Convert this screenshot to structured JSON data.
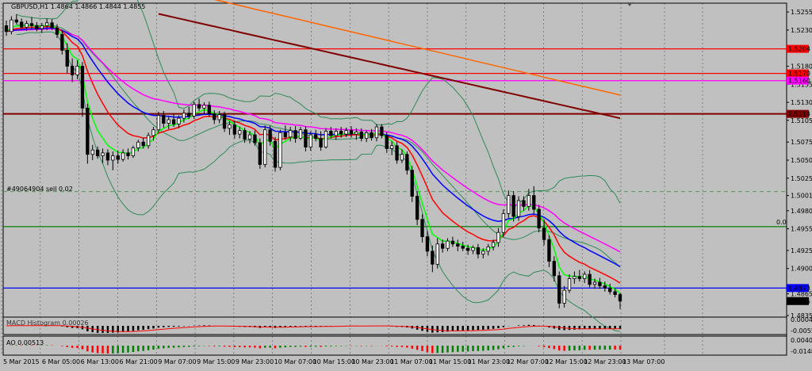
{
  "header": {
    "title": "GBPUSD,H1  1.4864 1.4866 1.4844 1.4855"
  },
  "order_label": "#49064904 sell 0.02",
  "grid_label": "0.0",
  "macd_label": "MACD Histogram 0.00026",
  "ao_label": "AO 0.00513",
  "colors": {
    "background": "#c0c0c0",
    "bull_candle": "#ffffff",
    "bear_candle": "#000000",
    "ma_red": "#ff0000",
    "ma_blue": "#0000ff",
    "ma_green": "#00ff00",
    "ma_magenta": "#ff00ff",
    "ma_brown": "#800000",
    "ma_orange": "#ff6600",
    "bands": "#2e8b57",
    "level_red": "#ff0000",
    "level_magenta": "#ff00ff",
    "level_brown": "#800000",
    "level_blue": "#0000ff",
    "level_green": "#008000",
    "ao_up": "#008000",
    "ao_down": "#ff0000"
  },
  "chart_data": {
    "type": "candlestick",
    "symbol": "GBPUSD",
    "timeframe": "H1",
    "x_labels": [
      "5 Mar 2015",
      "6 Mar 05:00",
      "6 Mar 13:00",
      "6 Mar 21:00",
      "9 Mar 07:00",
      "9 Mar 15:00",
      "9 Mar 23:00",
      "10 Mar 07:00",
      "10 Mar 15:00",
      "10 Mar 23:00",
      "11 Mar 07:00",
      "11 Mar 15:00",
      "11 Mar 23:00",
      "12 Mar 07:00",
      "12 Mar 15:00",
      "12 Mar 23:00",
      "13 Mar 07:00"
    ],
    "y_ticks": [
      "1.5255",
      "1.5230",
      "1.5180",
      "1.5155",
      "1.5130",
      "1.5105",
      "1.5075",
      "1.5050",
      "1.5025",
      "1.5001",
      "1.4980",
      "1.4955",
      "1.4925",
      "1.4900",
      "1.4865",
      "1.4835"
    ],
    "ylim": [
      1.4835,
      1.5265
    ],
    "price_labels": [
      {
        "value": 1.5204,
        "label": "1.5204",
        "color": "#ff0000"
      },
      {
        "value": 1.517,
        "label": "1.5170",
        "color": "#ff0000"
      },
      {
        "value": 1.516,
        "label": "1.5160",
        "color": "#ff00ff"
      },
      {
        "value": 1.5114,
        "label": "1.5114",
        "color": "#800000"
      },
      {
        "value": 1.4873,
        "label": "1.4873",
        "color": "#0000ff"
      },
      {
        "value": 1.4855,
        "label": "1.4855",
        "color": "#000000"
      }
    ],
    "levels": [
      {
        "value": 1.5204,
        "color": "#ff0000"
      },
      {
        "value": 1.517,
        "color": "#ff0000"
      },
      {
        "value": 1.516,
        "color": "#ff00ff"
      },
      {
        "value": 1.5114,
        "color": "#800000"
      },
      {
        "value": 1.4873,
        "color": "#0000ff"
      },
      {
        "value": 1.4958,
        "color": "#008000"
      }
    ],
    "order_level": 1.50064,
    "candles": [
      [
        1.5236,
        1.5243,
        1.5222,
        1.5228
      ],
      [
        1.5228,
        1.5249,
        1.5224,
        1.5244
      ],
      [
        1.5244,
        1.5252,
        1.5238,
        1.5241
      ],
      [
        1.5241,
        1.5246,
        1.5232,
        1.5234
      ],
      [
        1.5234,
        1.5243,
        1.5229,
        1.5239
      ],
      [
        1.5239,
        1.5248,
        1.5232,
        1.5236
      ],
      [
        1.5236,
        1.5241,
        1.5228,
        1.5232
      ],
      [
        1.5232,
        1.524,
        1.5226,
        1.5236
      ],
      [
        1.5236,
        1.5246,
        1.523,
        1.524
      ],
      [
        1.524,
        1.5245,
        1.523,
        1.5233
      ],
      [
        1.5233,
        1.5238,
        1.5219,
        1.5224
      ],
      [
        1.5224,
        1.5229,
        1.5196,
        1.5202
      ],
      [
        1.5202,
        1.5212,
        1.517,
        1.518
      ],
      [
        1.518,
        1.5191,
        1.5158,
        1.5168
      ],
      [
        1.5168,
        1.5188,
        1.5162,
        1.518
      ],
      [
        1.518,
        1.5186,
        1.511,
        1.5122
      ],
      [
        1.5122,
        1.5128,
        1.5045,
        1.5058
      ],
      [
        1.5058,
        1.5071,
        1.505,
        1.5064
      ],
      [
        1.5064,
        1.5069,
        1.5052,
        1.5056
      ],
      [
        1.5056,
        1.5066,
        1.5046,
        1.506
      ],
      [
        1.506,
        1.5065,
        1.5043,
        1.505
      ],
      [
        1.505,
        1.5062,
        1.5036,
        1.5056
      ],
      [
        1.5056,
        1.5063,
        1.5045,
        1.5051
      ],
      [
        1.5051,
        1.5065,
        1.5048,
        1.506
      ],
      [
        1.506,
        1.5066,
        1.5051,
        1.5056
      ],
      [
        1.5056,
        1.507,
        1.5053,
        1.5067
      ],
      [
        1.5067,
        1.5078,
        1.5062,
        1.5075
      ],
      [
        1.5075,
        1.5081,
        1.5066,
        1.507
      ],
      [
        1.507,
        1.5088,
        1.5066,
        1.5084
      ],
      [
        1.5084,
        1.5096,
        1.5077,
        1.5092
      ],
      [
        1.5092,
        1.5117,
        1.5088,
        1.5112
      ],
      [
        1.5112,
        1.5118,
        1.5095,
        1.5101
      ],
      [
        1.5101,
        1.511,
        1.5093,
        1.5106
      ],
      [
        1.5106,
        1.5114,
        1.5096,
        1.51
      ],
      [
        1.51,
        1.5112,
        1.5094,
        1.5108
      ],
      [
        1.5108,
        1.512,
        1.5102,
        1.5115
      ],
      [
        1.5115,
        1.5124,
        1.5107,
        1.5111
      ],
      [
        1.5111,
        1.5131,
        1.5107,
        1.5127
      ],
      [
        1.5127,
        1.5135,
        1.5118,
        1.5122
      ],
      [
        1.5122,
        1.513,
        1.5114,
        1.5126
      ],
      [
        1.5126,
        1.5131,
        1.511,
        1.5114
      ],
      [
        1.5114,
        1.5119,
        1.51,
        1.5106
      ],
      [
        1.5106,
        1.5118,
        1.5101,
        1.5113
      ],
      [
        1.5113,
        1.5117,
        1.5089,
        1.5094
      ],
      [
        1.5094,
        1.5104,
        1.5085,
        1.5099
      ],
      [
        1.5099,
        1.5105,
        1.508,
        1.5086
      ],
      [
        1.5086,
        1.5096,
        1.508,
        1.5091
      ],
      [
        1.5091,
        1.5095,
        1.5074,
        1.5079
      ],
      [
        1.5079,
        1.509,
        1.5073,
        1.5085
      ],
      [
        1.5085,
        1.5091,
        1.507,
        1.5074
      ],
      [
        1.5074,
        1.508,
        1.5038,
        1.5044
      ],
      [
        1.5044,
        1.5098,
        1.504,
        1.5092
      ],
      [
        1.5092,
        1.5098,
        1.507,
        1.5076
      ],
      [
        1.5076,
        1.5082,
        1.5034,
        1.504
      ],
      [
        1.504,
        1.5092,
        1.5036,
        1.5088
      ],
      [
        1.5088,
        1.5098,
        1.5078,
        1.5082
      ],
      [
        1.5082,
        1.5096,
        1.5076,
        1.5091
      ],
      [
        1.5091,
        1.5097,
        1.5074,
        1.508
      ],
      [
        1.508,
        1.5096,
        1.5078,
        1.5092
      ],
      [
        1.5092,
        1.5097,
        1.5062,
        1.5068
      ],
      [
        1.5068,
        1.509,
        1.5063,
        1.5085
      ],
      [
        1.5085,
        1.5092,
        1.5076,
        1.508
      ],
      [
        1.508,
        1.509,
        1.5063,
        1.5068
      ],
      [
        1.5068,
        1.5094,
        1.5066,
        1.509
      ],
      [
        1.509,
        1.5096,
        1.508,
        1.5084
      ],
      [
        1.5084,
        1.5094,
        1.5078,
        1.509
      ],
      [
        1.509,
        1.5096,
        1.5081,
        1.5086
      ],
      [
        1.5086,
        1.5095,
        1.5082,
        1.5091
      ],
      [
        1.5091,
        1.5097,
        1.5081,
        1.5086
      ],
      [
        1.5086,
        1.5094,
        1.5078,
        1.5089
      ],
      [
        1.5089,
        1.5094,
        1.5076,
        1.508
      ],
      [
        1.508,
        1.5091,
        1.5075,
        1.5088
      ],
      [
        1.5088,
        1.5093,
        1.5077,
        1.5081
      ],
      [
        1.5081,
        1.51,
        1.5076,
        1.5096
      ],
      [
        1.5096,
        1.51,
        1.508,
        1.5084
      ],
      [
        1.5084,
        1.5089,
        1.506,
        1.5066
      ],
      [
        1.5066,
        1.5076,
        1.5057,
        1.507
      ],
      [
        1.507,
        1.5075,
        1.5045,
        1.505
      ],
      [
        1.505,
        1.5065,
        1.5046,
        1.5058
      ],
      [
        1.5058,
        1.5062,
        1.503,
        1.5036
      ],
      [
        1.5036,
        1.5042,
        1.4992,
        1.5
      ],
      [
        1.5,
        1.5007,
        1.496,
        1.4968
      ],
      [
        1.4968,
        1.4975,
        1.4936,
        1.4944
      ],
      [
        1.4944,
        1.4952,
        1.4917,
        1.4924
      ],
      [
        1.4924,
        1.4932,
        1.4895,
        1.4906
      ],
      [
        1.4906,
        1.4942,
        1.49,
        1.4934
      ],
      [
        1.4934,
        1.494,
        1.4922,
        1.4928
      ],
      [
        1.4928,
        1.4942,
        1.4924,
        1.4938
      ],
      [
        1.4938,
        1.4944,
        1.493,
        1.4934
      ],
      [
        1.4934,
        1.494,
        1.4924,
        1.4931
      ],
      [
        1.4931,
        1.4937,
        1.4924,
        1.4928
      ],
      [
        1.4928,
        1.4933,
        1.4919,
        1.4925
      ],
      [
        1.4925,
        1.4932,
        1.492,
        1.4929
      ],
      [
        1.4929,
        1.4934,
        1.4914,
        1.492
      ],
      [
        1.492,
        1.4928,
        1.4914,
        1.4924
      ],
      [
        1.4924,
        1.4934,
        1.4918,
        1.493
      ],
      [
        1.493,
        1.494,
        1.4925,
        1.4936
      ],
      [
        1.4936,
        1.4956,
        1.493,
        1.495
      ],
      [
        1.495,
        1.4982,
        1.4944,
        1.4976
      ],
      [
        1.4976,
        1.5008,
        1.497,
        1.5001
      ],
      [
        1.5001,
        1.5007,
        1.4965,
        1.4972
      ],
      [
        1.4972,
        1.5,
        1.4966,
        1.4994
      ],
      [
        1.4994,
        1.5,
        1.498,
        1.4986
      ],
      [
        1.4986,
        1.501,
        1.498,
        1.5001
      ],
      [
        1.5001,
        1.5014,
        1.4975,
        1.4982
      ],
      [
        1.4982,
        1.4988,
        1.495,
        1.4956
      ],
      [
        1.4956,
        1.4968,
        1.4932,
        1.494
      ],
      [
        1.494,
        1.4946,
        1.4902,
        1.491
      ],
      [
        1.491,
        1.4917,
        1.4882,
        1.489
      ],
      [
        1.489,
        1.4896,
        1.4845,
        1.4852
      ],
      [
        1.4852,
        1.4876,
        1.4846,
        1.487
      ],
      [
        1.487,
        1.4892,
        1.4866,
        1.4886
      ],
      [
        1.4886,
        1.4896,
        1.4879,
        1.4889
      ],
      [
        1.4889,
        1.4898,
        1.4882,
        1.4886
      ],
      [
        1.4886,
        1.4896,
        1.488,
        1.4892
      ],
      [
        1.4892,
        1.4898,
        1.4874,
        1.4878
      ],
      [
        1.4878,
        1.4886,
        1.4872,
        1.4881
      ],
      [
        1.4881,
        1.4887,
        1.4872,
        1.4876
      ],
      [
        1.4876,
        1.4882,
        1.4868,
        1.4873
      ],
      [
        1.4873,
        1.4879,
        1.4864,
        1.4868
      ],
      [
        1.4868,
        1.4872,
        1.486,
        1.4864
      ],
      [
        1.4864,
        1.4866,
        1.4844,
        1.4855
      ]
    ]
  }
}
